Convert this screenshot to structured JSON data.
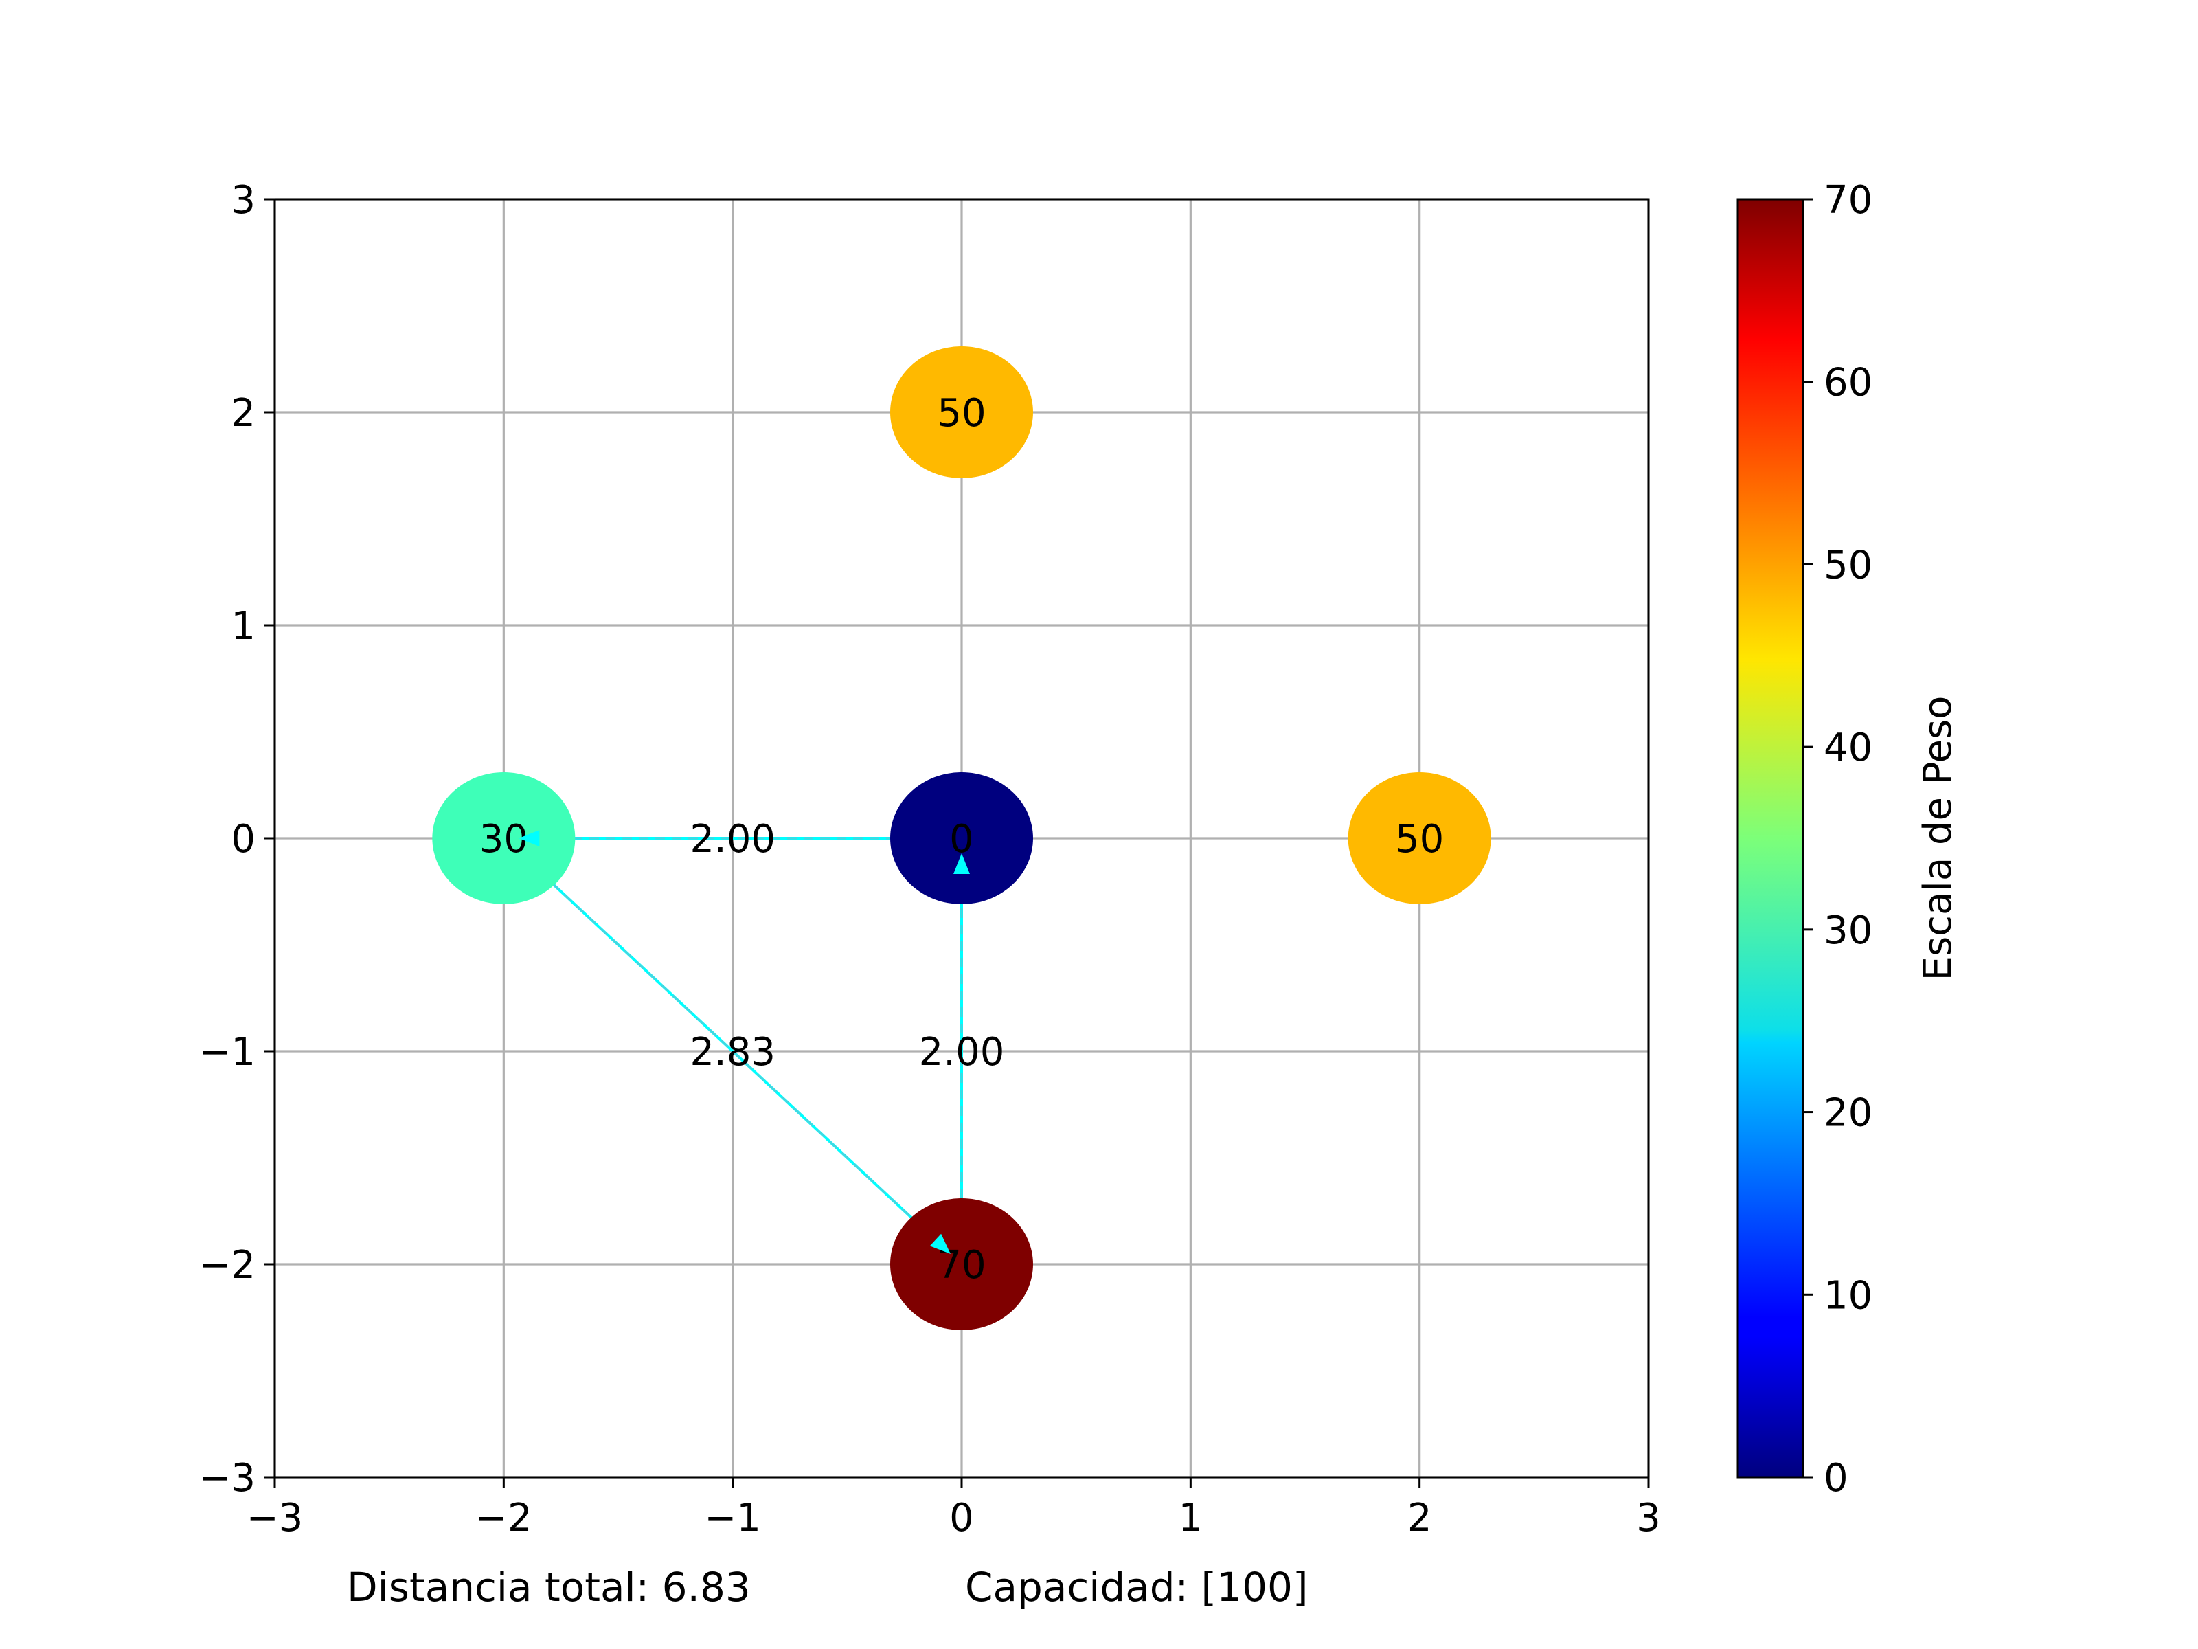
{
  "chart_data": {
    "type": "scatter",
    "title": "",
    "xlabel": "",
    "ylabel": "",
    "xlim": [
      -3,
      3
    ],
    "ylim": [
      -3,
      3
    ],
    "xticks": [
      -3,
      -2,
      -1,
      0,
      1,
      2,
      3
    ],
    "yticks": [
      -3,
      -2,
      -1,
      0,
      1,
      2,
      3
    ],
    "xtick_labels": [
      "−3",
      "−2",
      "−1",
      "0",
      "1",
      "2",
      "3"
    ],
    "ytick_labels": [
      "−3",
      "−2",
      "−1",
      "0",
      "1",
      "2",
      "3"
    ],
    "grid": true,
    "nodes": [
      {
        "x": 0,
        "y": 0,
        "weight": 0,
        "label": "0",
        "color": "#00007f"
      },
      {
        "x": -2,
        "y": 0,
        "weight": 30,
        "label": "30",
        "color": "#3effb8"
      },
      {
        "x": 0,
        "y": -2,
        "weight": 70,
        "label": "70",
        "color": "#7f0000"
      },
      {
        "x": 0,
        "y": 2,
        "weight": 50,
        "label": "50",
        "color": "#ffb900"
      },
      {
        "x": 2,
        "y": 0,
        "weight": 50,
        "label": "50",
        "color": "#ffb900"
      }
    ],
    "edges": [
      {
        "from": [
          0,
          0
        ],
        "to": [
          -2,
          0
        ],
        "label": "2.00",
        "label_pos": [
          -1,
          0
        ]
      },
      {
        "from": [
          -2,
          0
        ],
        "to": [
          0,
          -2
        ],
        "label": "2.83",
        "label_pos": [
          -1,
          -1
        ]
      },
      {
        "from": [
          0,
          -2
        ],
        "to": [
          0,
          0
        ],
        "label": "2.00",
        "label_pos": [
          0,
          -1
        ]
      }
    ],
    "edge_color": "#00ffff",
    "colorbar": {
      "label": "Escala de Peso",
      "min": 0,
      "max": 70,
      "ticks": [
        0,
        10,
        20,
        30,
        40,
        50,
        60,
        70
      ],
      "tick_labels": [
        "0",
        "10",
        "20",
        "30",
        "40",
        "50",
        "60",
        "70"
      ],
      "colormap": "jet"
    },
    "footer": {
      "distance_text": "Distancia total: 6.83",
      "capacity_text": "Capacidad: [100]"
    }
  }
}
